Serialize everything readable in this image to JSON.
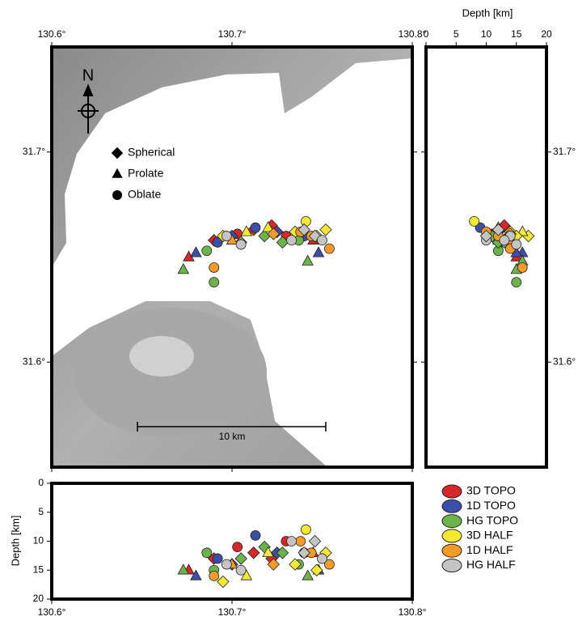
{
  "chart_data": {
    "type": "scatter",
    "xlim": [
      130.6,
      130.8
    ],
    "ylim": [
      31.55,
      31.75
    ],
    "depth_lim": [
      0,
      20
    ],
    "xticks": [
      {
        "value": 130.6,
        "label": "130.6°"
      },
      {
        "value": 130.7,
        "label": "130.7°"
      },
      {
        "value": 130.8,
        "label": "130.8°"
      }
    ],
    "yticks": [
      {
        "value": 31.6,
        "label": "31.6°"
      },
      {
        "value": 31.7,
        "label": "31.7°"
      }
    ],
    "depth_ticks": [
      0,
      5,
      10,
      15,
      20
    ],
    "depth_label": "Depth [km]",
    "north_label": "N",
    "scale_label": "10 km",
    "shape_legend": [
      {
        "label": "Spherical",
        "shape": "diamond"
      },
      {
        "label": "Prolate",
        "shape": "triangle"
      },
      {
        "label": "Oblate",
        "shape": "circle"
      }
    ],
    "series": [
      {
        "name": "3D TOPO",
        "color": "#d9262a",
        "lon": [
          130.676,
          130.69,
          130.703,
          130.712,
          130.722,
          130.73,
          130.745
        ],
        "lat": [
          31.65,
          31.658,
          31.661,
          31.663,
          31.665,
          31.66,
          31.658
        ],
        "depth": [
          15,
          13,
          11,
          12,
          13,
          10,
          12
        ],
        "shape": [
          "triangle",
          "diamond",
          "circle",
          "diamond",
          "diamond",
          "circle",
          "triangle"
        ]
      },
      {
        "name": "1D TOPO",
        "color": "#3c4fa8",
        "lon": [
          130.68,
          130.692,
          130.7,
          130.713,
          130.725,
          130.74,
          130.748
        ],
        "lat": [
          31.652,
          31.657,
          31.66,
          31.664,
          31.662,
          31.66,
          31.652
        ],
        "depth": [
          16,
          13,
          14,
          9,
          12,
          12,
          15
        ],
        "shape": [
          "triangle",
          "circle",
          "diamond",
          "circle",
          "diamond",
          "circle",
          "triangle"
        ]
      },
      {
        "name": "HG TOPO",
        "color": "#6db34c",
        "lon": [
          130.673,
          130.686,
          130.69,
          130.705,
          130.718,
          130.728,
          130.737,
          130.742
        ],
        "lat": [
          31.644,
          31.653,
          31.638,
          31.657,
          31.66,
          31.657,
          31.658,
          31.648
        ],
        "depth": [
          15,
          12,
          15,
          13,
          11,
          12,
          14,
          16
        ],
        "shape": [
          "triangle",
          "circle",
          "circle",
          "diamond",
          "diamond",
          "diamond",
          "circle",
          "triangle"
        ]
      },
      {
        "name": "3D HALF",
        "color": "#f5e830",
        "lon": [
          130.695,
          130.708,
          130.72,
          130.735,
          130.741,
          130.747,
          130.752
        ],
        "lat": [
          31.66,
          31.662,
          31.664,
          31.662,
          31.667,
          31.66,
          31.663
        ],
        "depth": [
          17,
          16,
          12,
          14,
          8,
          15,
          12
        ],
        "shape": [
          "diamond",
          "triangle",
          "triangle",
          "diamond",
          "circle",
          "diamond",
          "diamond"
        ]
      },
      {
        "name": "1D HALF",
        "color": "#f39b26",
        "lon": [
          130.69,
          130.7,
          130.723,
          130.738,
          130.744,
          130.754
        ],
        "lat": [
          31.645,
          31.658,
          31.661,
          31.662,
          31.66,
          31.654
        ],
        "depth": [
          16,
          14,
          14,
          10,
          12,
          14
        ],
        "shape": [
          "circle",
          "triangle",
          "diamond",
          "circle",
          "circle",
          "circle"
        ]
      },
      {
        "name": "HG HALF",
        "color": "#c4c4c4",
        "lon": [
          130.697,
          130.705,
          130.733,
          130.74,
          130.746,
          130.75
        ],
        "lat": [
          31.66,
          31.656,
          31.658,
          31.663,
          31.66,
          31.658
        ],
        "depth": [
          14,
          15,
          10,
          12,
          10,
          13
        ],
        "shape": [
          "circle",
          "circle",
          "circle",
          "diamond",
          "diamond",
          "circle"
        ]
      }
    ]
  }
}
